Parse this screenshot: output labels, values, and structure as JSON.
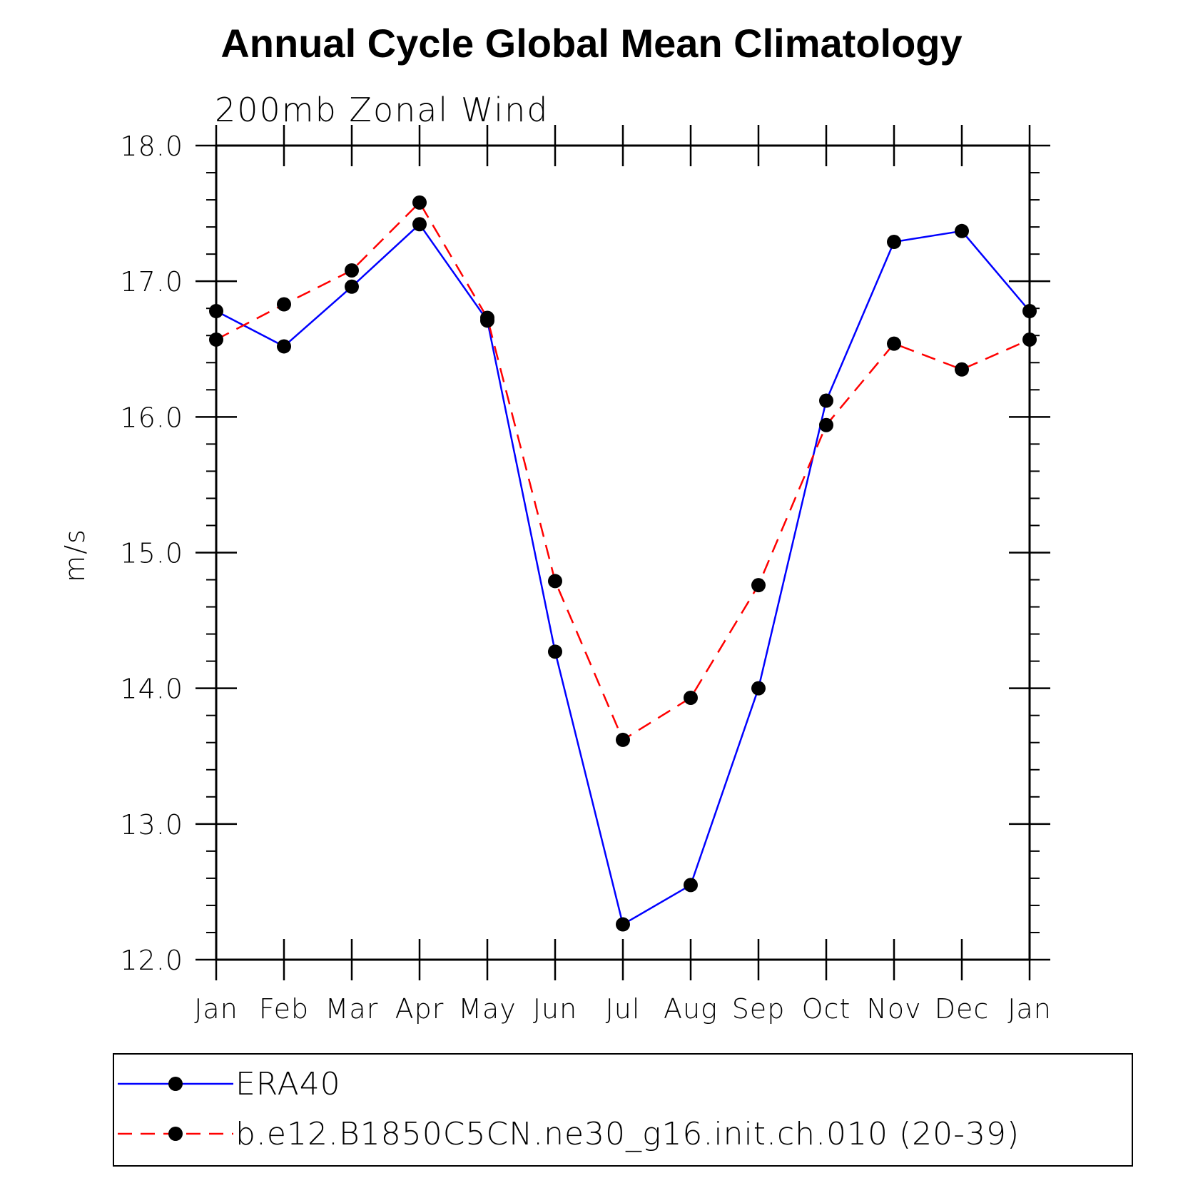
{
  "chart_data": {
    "type": "line",
    "title": "Annual Cycle Global Mean Climatology",
    "subtitle": "200mb Zonal Wind",
    "ylabel": "m/s",
    "xlabel": "",
    "ylim": [
      12.0,
      18.0
    ],
    "yticks": [
      "12.0",
      "13.0",
      "14.0",
      "15.0",
      "16.0",
      "17.0",
      "18.0"
    ],
    "categories": [
      "Jan",
      "Feb",
      "Mar",
      "Apr",
      "May",
      "Jun",
      "Jul",
      "Aug",
      "Sep",
      "Oct",
      "Nov",
      "Dec",
      "Jan"
    ],
    "series": [
      {
        "name": "ERA40",
        "color": "#0000ff",
        "dash": "solid",
        "values": [
          16.78,
          16.52,
          16.96,
          17.42,
          16.71,
          14.27,
          12.26,
          12.55,
          14.0,
          16.12,
          17.29,
          17.37,
          16.78
        ]
      },
      {
        "name": "b.e12.B1850C5CN.ne30_g16.init.ch.010 (20-39)",
        "color": "#ff0000",
        "dash": "dashed",
        "values": [
          16.57,
          16.83,
          17.08,
          17.58,
          16.73,
          14.79,
          13.62,
          13.93,
          14.76,
          15.94,
          16.54,
          16.35,
          16.57
        ]
      }
    ],
    "marker": "filled-circle",
    "legend_position": "bottom",
    "grid": false
  }
}
